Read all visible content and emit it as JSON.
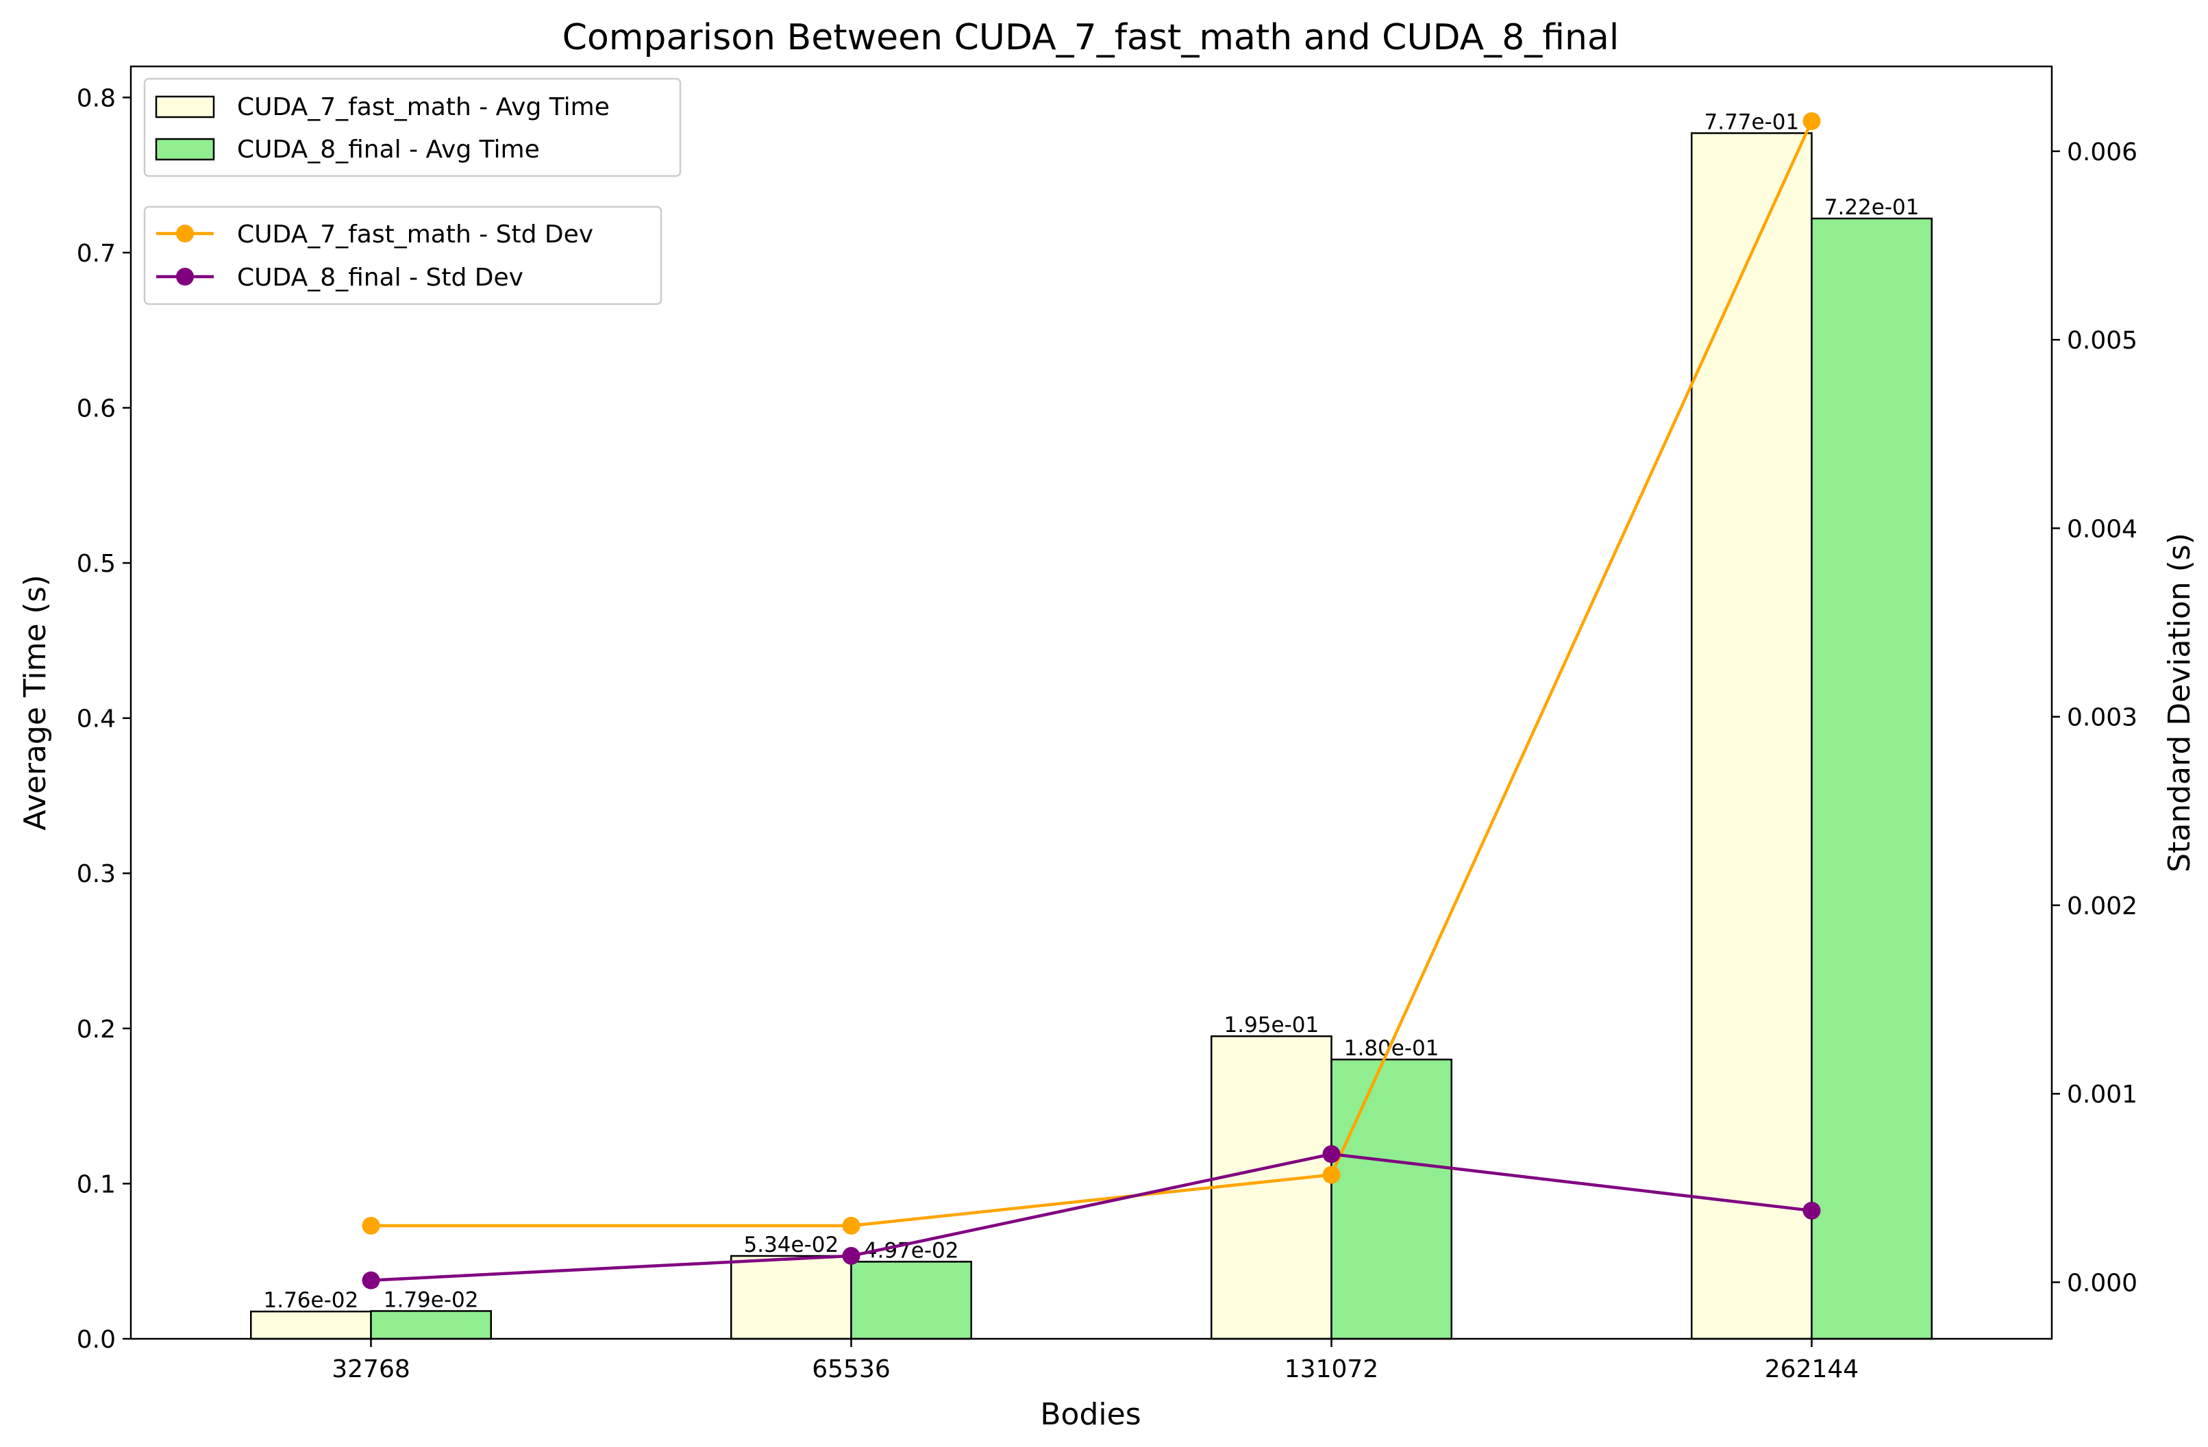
{
  "chart_data": {
    "type": "bar",
    "title": "Comparison Between CUDA_7_fast_math and CUDA_8_final",
    "xlabel": "Bodies",
    "ylabel": "Average Time (s)",
    "y2label": "Standard Deviation (s)",
    "categories": [
      "32768",
      "65536",
      "131072",
      "262144"
    ],
    "ylim": [
      0,
      0.82
    ],
    "y2lim": [
      -0.0003,
      0.00645
    ],
    "yticks": [
      "0.0",
      "0.1",
      "0.2",
      "0.3",
      "0.4",
      "0.5",
      "0.6",
      "0.7",
      "0.8"
    ],
    "y2ticks": [
      "0.000",
      "0.001",
      "0.002",
      "0.003",
      "0.004",
      "0.005",
      "0.006"
    ],
    "grid": false,
    "bar_series": [
      {
        "name": "CUDA_7_fast_math - Avg Time",
        "color": "#ffffe0",
        "values": [
          0.0176,
          0.0534,
          0.195,
          0.777
        ],
        "labels": [
          "1.76e-02",
          "5.34e-02",
          "1.95e-01",
          "7.77e-01"
        ]
      },
      {
        "name": "CUDA_8_final - Avg Time",
        "color": "#90ee90",
        "values": [
          0.0179,
          0.0497,
          0.18,
          0.722
        ],
        "labels": [
          "1.79e-02",
          "4.97e-02",
          "1.80e-01",
          "7.22e-01"
        ]
      }
    ],
    "line_series": [
      {
        "name": "CUDA_7_fast_math - Std Dev",
        "color": "#ffa500",
        "values": [
          0.0003,
          0.0003,
          0.00057,
          0.00616
        ]
      },
      {
        "name": "CUDA_8_final - Std Dev",
        "color": "#800080",
        "values": [
          1e-05,
          0.00014,
          0.00068,
          0.00038
        ]
      }
    ],
    "legend_bars_position": "upper-left",
    "legend_lines_position": "upper-left, below bar legend"
  }
}
